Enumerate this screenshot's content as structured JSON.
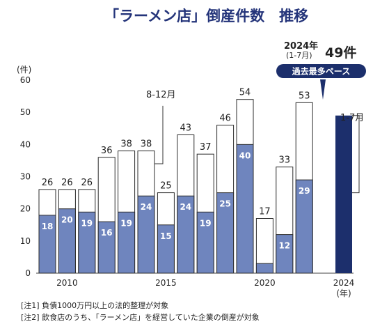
{
  "chart_data": {
    "type": "bar",
    "title": "「ラーメン店」倒産件数　推移",
    "y_unit": "(件)",
    "x_unit": "(年)",
    "ylim": [
      0,
      60
    ],
    "y_ticks": [
      "0",
      "10",
      "20",
      "30",
      "40",
      "50",
      "60"
    ],
    "x_tick_labels": {
      "2010": "2010",
      "2015": "2015",
      "2020": "2020",
      "2024": "2024"
    },
    "categories": [
      "2009",
      "2010",
      "2011",
      "2012",
      "2013",
      "2014",
      "2015",
      "2016",
      "2017",
      "2018",
      "2019",
      "2020",
      "2021",
      "2022",
      "2023",
      "2024"
    ],
    "totals": [
      26,
      26,
      26,
      36,
      38,
      38,
      25,
      43,
      37,
      46,
      54,
      17,
      33,
      53,
      null,
      null
    ],
    "inner": [
      18,
      20,
      19,
      16,
      19,
      24,
      15,
      24,
      19,
      25,
      40,
      3,
      12,
      29,
      null,
      49
    ],
    "inner_labels": [
      "18",
      "20",
      "19",
      "16",
      "19",
      "24",
      "15",
      "24",
      "19",
      "25",
      "40",
      "",
      "12",
      "29",
      "",
      ""
    ],
    "total_labels": [
      "26",
      "26",
      "26",
      "36",
      "38",
      "38",
      "25",
      "43",
      "37",
      "46",
      "54",
      "17",
      "33",
      "53",
      "",
      ""
    ],
    "annotations": {
      "partial_range": "8-12月",
      "current_range": "1-7月",
      "current_year": "2024年",
      "current_period": "(1-7月)",
      "current_value": "49件",
      "badge": "過去最多ペース"
    }
  },
  "notes": [
    "[注1] 負債1000万円以上の法的整理が対象",
    "[注2] 飲食店のうち、「ラーメン店」を経営していた企業の倒産が対象"
  ],
  "colors": {
    "inner_fill": "#6f85be",
    "current_fill": "#1c2f6c",
    "outline": "#2b2b2b",
    "title": "#24347a",
    "badge": "#1c2f6c"
  }
}
